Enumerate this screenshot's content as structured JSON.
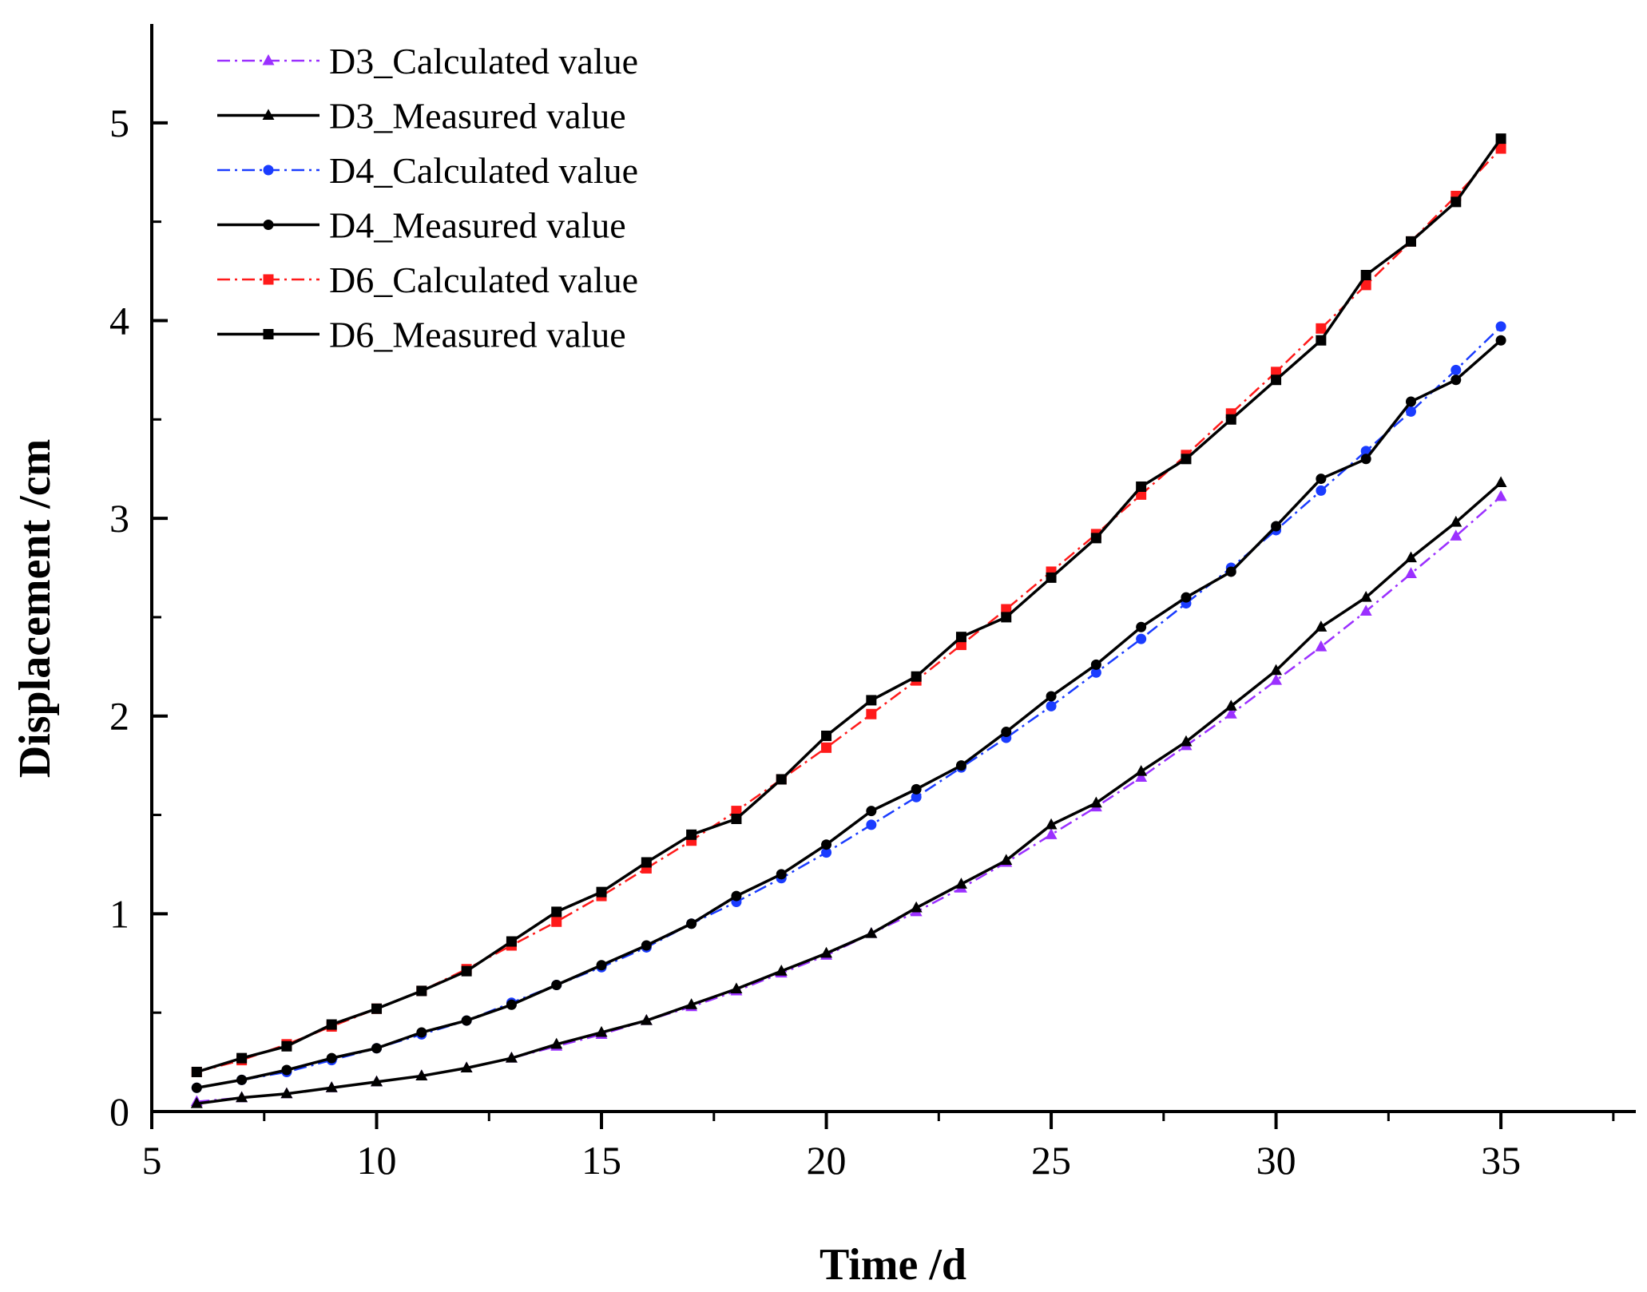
{
  "chart_data": {
    "type": "line",
    "title": "",
    "xlabel": "Time /d",
    "ylabel": "Displacement /cm",
    "xlim": [
      5,
      38
    ],
    "ylim": [
      0,
      5.5
    ],
    "xticks": [
      5,
      10,
      15,
      20,
      25,
      30,
      35
    ],
    "xtick_labels": [
      "5",
      "10",
      "15",
      "20",
      "25",
      "30",
      "35"
    ],
    "yticks": [
      0,
      1,
      2,
      3,
      4,
      5
    ],
    "ytick_labels": [
      "0",
      "1",
      "2",
      "3",
      "4",
      "5"
    ],
    "grid": false,
    "legend_position": "top-left",
    "x": [
      6,
      7,
      8,
      9,
      10,
      11,
      12,
      13,
      14,
      15,
      16,
      17,
      18,
      19,
      20,
      21,
      22,
      23,
      24,
      25,
      26,
      27,
      28,
      29,
      30,
      31,
      32,
      33,
      34,
      35
    ],
    "series": [
      {
        "name": "D3_Calculated value",
        "color": "#9b30ff",
        "style": "dashdot",
        "marker": "triangle",
        "values": [
          0.05,
          0.07,
          0.09,
          0.12,
          0.15,
          0.18,
          0.22,
          0.27,
          0.33,
          0.39,
          0.46,
          0.53,
          0.61,
          0.7,
          0.79,
          0.9,
          1.01,
          1.13,
          1.26,
          1.4,
          1.54,
          1.69,
          1.85,
          2.01,
          2.18,
          2.35,
          2.53,
          2.72,
          2.91,
          3.11
        ]
      },
      {
        "name": "D3_Measured value",
        "color": "#000000",
        "style": "solid",
        "marker": "triangle",
        "values": [
          0.04,
          0.07,
          0.09,
          0.12,
          0.15,
          0.18,
          0.22,
          0.27,
          0.34,
          0.4,
          0.46,
          0.54,
          0.62,
          0.71,
          0.8,
          0.9,
          1.03,
          1.15,
          1.27,
          1.45,
          1.56,
          1.72,
          1.87,
          2.05,
          2.23,
          2.45,
          2.6,
          2.8,
          2.98,
          3.18
        ]
      },
      {
        "name": "D4_Calculated value",
        "color": "#1a3cff",
        "style": "dashdot",
        "marker": "circle",
        "values": [
          0.12,
          0.16,
          0.2,
          0.26,
          0.32,
          0.39,
          0.46,
          0.55,
          0.64,
          0.73,
          0.83,
          0.95,
          1.06,
          1.18,
          1.31,
          1.45,
          1.59,
          1.74,
          1.89,
          2.05,
          2.22,
          2.39,
          2.57,
          2.75,
          2.94,
          3.14,
          3.34,
          3.54,
          3.75,
          3.97
        ]
      },
      {
        "name": "D4_Measured value",
        "color": "#000000",
        "style": "solid",
        "marker": "circle",
        "values": [
          0.12,
          0.16,
          0.21,
          0.27,
          0.32,
          0.4,
          0.46,
          0.54,
          0.64,
          0.74,
          0.84,
          0.95,
          1.09,
          1.2,
          1.35,
          1.52,
          1.63,
          1.75,
          1.92,
          2.1,
          2.26,
          2.45,
          2.6,
          2.73,
          2.96,
          3.2,
          3.3,
          3.59,
          3.7,
          3.9
        ]
      },
      {
        "name": "D6_Calculated value",
        "color": "#ff1a1a",
        "style": "dashdot",
        "marker": "square",
        "values": [
          0.2,
          0.26,
          0.34,
          0.43,
          0.52,
          0.61,
          0.72,
          0.84,
          0.96,
          1.09,
          1.23,
          1.37,
          1.52,
          1.68,
          1.84,
          2.01,
          2.18,
          2.36,
          2.54,
          2.73,
          2.92,
          3.12,
          3.32,
          3.53,
          3.74,
          3.96,
          4.18,
          4.4,
          4.63,
          4.87
        ]
      },
      {
        "name": "D6_Measured value",
        "color": "#000000",
        "style": "solid",
        "marker": "square",
        "values": [
          0.2,
          0.27,
          0.33,
          0.44,
          0.52,
          0.61,
          0.71,
          0.86,
          1.01,
          1.11,
          1.26,
          1.4,
          1.48,
          1.68,
          1.9,
          2.08,
          2.2,
          2.4,
          2.5,
          2.7,
          2.9,
          3.16,
          3.3,
          3.5,
          3.7,
          3.9,
          4.23,
          4.4,
          4.6,
          4.92
        ]
      }
    ]
  }
}
